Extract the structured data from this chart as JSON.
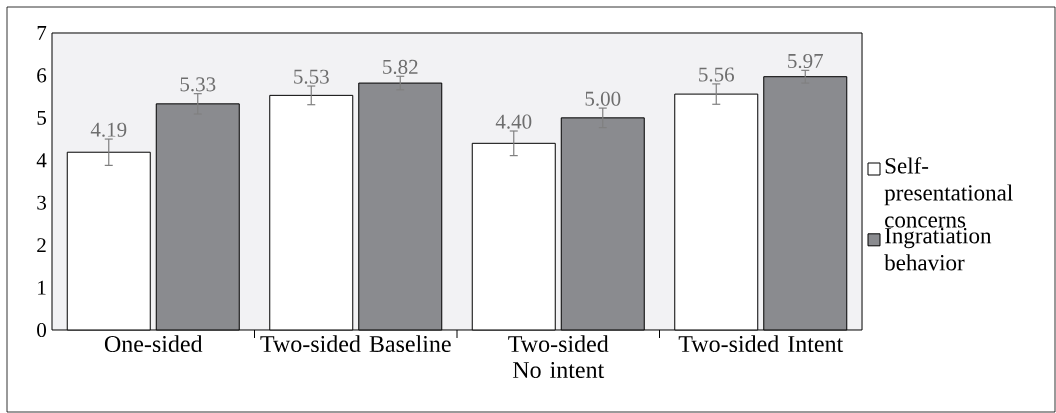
{
  "chart_data": {
    "type": "bar",
    "categories": [
      "One-sided",
      "Two-sided Baseline",
      "Two-sided No intent",
      "Two-sided Intent"
    ],
    "series": [
      {
        "name": "Self-presentational concerns",
        "color": "#ffffff",
        "values": [
          4.19,
          5.53,
          4.4,
          5.56
        ],
        "errors": [
          0.31,
          0.22,
          0.29,
          0.24
        ],
        "value_labels": [
          "4.19",
          "5.53",
          "4.40",
          "5.56"
        ]
      },
      {
        "name": "Ingratiation behavior",
        "color": "#8a8b8f",
        "values": [
          5.33,
          5.82,
          5.0,
          5.97
        ],
        "errors": [
          0.24,
          0.16,
          0.23,
          0.15
        ],
        "value_labels": [
          "5.33",
          "5.82",
          "5.00",
          "5.97"
        ]
      }
    ],
    "ylim": [
      0,
      7
    ],
    "yticks": [
      0,
      1,
      2,
      3,
      4,
      5,
      6,
      7
    ],
    "legend": "right",
    "grid": false
  }
}
